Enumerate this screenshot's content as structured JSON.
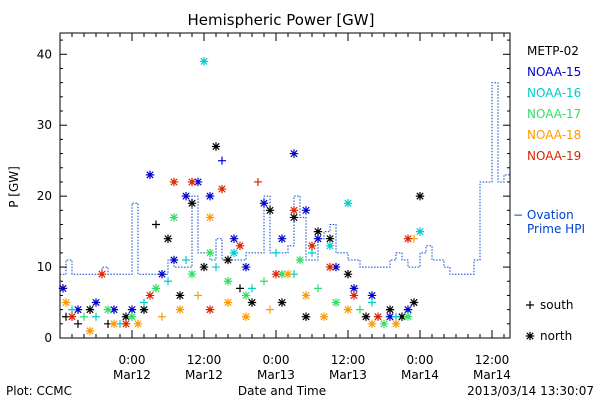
{
  "chart_data": {
    "type": "scatter",
    "title": "Hemispheric Power [GW]",
    "ylabel": "P [GW]",
    "xlabel": "Date and Time",
    "ylim": [
      0,
      43
    ],
    "xlim": [
      "2013-03-11 12:00",
      "2013-03-14 15:00"
    ],
    "yticks": [
      0,
      10,
      20,
      30,
      40
    ],
    "xticks": [
      {
        "t": "2013-03-12 00:00",
        "label1": "0:00",
        "label2": "Mar12"
      },
      {
        "t": "2013-03-12 12:00",
        "label1": "12:00",
        "label2": "Mar12"
      },
      {
        "t": "2013-03-13 00:00",
        "label1": "0:00",
        "label2": "Mar13"
      },
      {
        "t": "2013-03-13 12:00",
        "label1": "12:00",
        "label2": "Mar13"
      },
      {
        "t": "2013-03-14 00:00",
        "label1": "0:00",
        "label2": "Mar14"
      },
      {
        "t": "2013-03-14 12:00",
        "label1": "12:00",
        "label2": "Mar14"
      }
    ],
    "legend_position": "right",
    "series": [
      {
        "name": "METP-02",
        "color": "#000000",
        "points": [
          [
            "2013-03-11 13:00",
            3,
            "south"
          ],
          [
            "2013-03-11 15:00",
            2,
            "south"
          ],
          [
            "2013-03-11 17:00",
            4,
            "north"
          ],
          [
            "2013-03-11 20:00",
            2,
            "south"
          ],
          [
            "2013-03-11 23:00",
            3,
            "north"
          ],
          [
            "2013-03-12 02:00",
            4,
            "north"
          ],
          [
            "2013-03-12 04:00",
            16,
            "south"
          ],
          [
            "2013-03-12 06:00",
            14,
            "north"
          ],
          [
            "2013-03-12 08:00",
            6,
            "north"
          ],
          [
            "2013-03-12 10:00",
            19,
            "north"
          ],
          [
            "2013-03-12 12:00",
            10,
            "north"
          ],
          [
            "2013-03-12 14:00",
            27,
            "north"
          ],
          [
            "2013-03-12 16:00",
            11,
            "north"
          ],
          [
            "2013-03-12 18:00",
            7,
            "south"
          ],
          [
            "2013-03-12 20:00",
            5,
            "north"
          ],
          [
            "2013-03-12 23:00",
            18,
            "north"
          ],
          [
            "2013-03-13 01:00",
            5,
            "north"
          ],
          [
            "2013-03-13 03:00",
            17,
            "north"
          ],
          [
            "2013-03-13 05:00",
            3,
            "north"
          ],
          [
            "2013-03-13 07:00",
            15,
            "north"
          ],
          [
            "2013-03-13 09:00",
            14,
            "north"
          ],
          [
            "2013-03-13 12:00",
            9,
            "north"
          ],
          [
            "2013-03-13 15:00",
            3,
            "north"
          ],
          [
            "2013-03-13 19:00",
            4,
            "north"
          ],
          [
            "2013-03-13 21:00",
            3,
            "north"
          ],
          [
            "2013-03-13 23:00",
            5,
            "north"
          ],
          [
            "2013-03-14 00:00",
            20,
            "north"
          ]
        ]
      },
      {
        "name": "NOAA-15",
        "color": "#0000cc",
        "points": [
          [
            "2013-03-11 12:30",
            7,
            "north"
          ],
          [
            "2013-03-11 15:00",
            4,
            "north"
          ],
          [
            "2013-03-11 18:00",
            5,
            "north"
          ],
          [
            "2013-03-11 21:00",
            4,
            "north"
          ],
          [
            "2013-03-12 00:00",
            4,
            "north"
          ],
          [
            "2013-03-12 03:00",
            23,
            "north"
          ],
          [
            "2013-03-12 05:00",
            9,
            "north"
          ],
          [
            "2013-03-12 07:00",
            11,
            "north"
          ],
          [
            "2013-03-12 09:00",
            20,
            "north"
          ],
          [
            "2013-03-12 11:00",
            22,
            "north"
          ],
          [
            "2013-03-12 13:00",
            20,
            "north"
          ],
          [
            "2013-03-12 15:00",
            25,
            "south"
          ],
          [
            "2013-03-12 17:00",
            14,
            "north"
          ],
          [
            "2013-03-12 19:00",
            10,
            "north"
          ],
          [
            "2013-03-12 22:00",
            19,
            "north"
          ],
          [
            "2013-03-13 01:00",
            14,
            "north"
          ],
          [
            "2013-03-13 03:00",
            26,
            "north"
          ],
          [
            "2013-03-13 05:00",
            18,
            "north"
          ],
          [
            "2013-03-13 07:00",
            14,
            "north"
          ],
          [
            "2013-03-13 10:00",
            10,
            "north"
          ],
          [
            "2013-03-13 13:00",
            7,
            "north"
          ],
          [
            "2013-03-13 16:00",
            6,
            "north"
          ],
          [
            "2013-03-13 19:00",
            3,
            "north"
          ],
          [
            "2013-03-13 22:00",
            4,
            "north"
          ]
        ]
      },
      {
        "name": "NOAA-16",
        "color": "#00cccc",
        "points": [
          [
            "2013-03-11 14:00",
            4,
            "south"
          ],
          [
            "2013-03-11 18:00",
            3,
            "south"
          ],
          [
            "2013-03-11 22:00",
            2,
            "south"
          ],
          [
            "2013-03-12 02:00",
            5,
            "south"
          ],
          [
            "2013-03-12 06:00",
            8,
            "south"
          ],
          [
            "2013-03-12 09:00",
            11,
            "south"
          ],
          [
            "2013-03-12 12:00",
            39,
            "north"
          ],
          [
            "2013-03-12 14:00",
            10,
            "south"
          ],
          [
            "2013-03-12 17:00",
            12,
            "north"
          ],
          [
            "2013-03-12 20:00",
            7,
            "south"
          ],
          [
            "2013-03-13 00:00",
            12,
            "south"
          ],
          [
            "2013-03-13 03:00",
            9,
            "south"
          ],
          [
            "2013-03-13 06:00",
            12,
            "south"
          ],
          [
            "2013-03-13 09:00",
            13,
            "north"
          ],
          [
            "2013-03-13 12:00",
            19,
            "north"
          ],
          [
            "2013-03-13 16:00",
            5,
            "south"
          ],
          [
            "2013-03-13 20:00",
            3,
            "south"
          ],
          [
            "2013-03-14 00:00",
            15,
            "north"
          ]
        ]
      },
      {
        "name": "NOAA-17",
        "color": "#33dd66",
        "points": [
          [
            "2013-03-11 16:00",
            3,
            "south"
          ],
          [
            "2013-03-11 20:00",
            4,
            "north"
          ],
          [
            "2013-03-12 00:00",
            3,
            "north"
          ],
          [
            "2013-03-12 04:00",
            7,
            "north"
          ],
          [
            "2013-03-12 07:00",
            17,
            "north"
          ],
          [
            "2013-03-12 10:00",
            9,
            "north"
          ],
          [
            "2013-03-12 13:00",
            12,
            "north"
          ],
          [
            "2013-03-12 16:00",
            8,
            "north"
          ],
          [
            "2013-03-12 19:00",
            6,
            "north"
          ],
          [
            "2013-03-12 22:00",
            8,
            "south"
          ],
          [
            "2013-03-13 01:00",
            9,
            "north"
          ],
          [
            "2013-03-13 04:00",
            11,
            "north"
          ],
          [
            "2013-03-13 07:00",
            7,
            "south"
          ],
          [
            "2013-03-13 10:00",
            5,
            "north"
          ],
          [
            "2013-03-13 14:00",
            4,
            "south"
          ],
          [
            "2013-03-13 18:00",
            2,
            "north"
          ],
          [
            "2013-03-13 22:00",
            3,
            "north"
          ]
        ]
      },
      {
        "name": "NOAA-18",
        "color": "#ff9900",
        "points": [
          [
            "2013-03-11 13:00",
            5,
            "north"
          ],
          [
            "2013-03-11 17:00",
            1,
            "north"
          ],
          [
            "2013-03-11 21:00",
            2,
            "north"
          ],
          [
            "2013-03-12 01:00",
            2,
            "north"
          ],
          [
            "2013-03-12 05:00",
            3,
            "south"
          ],
          [
            "2013-03-12 08:00",
            4,
            "north"
          ],
          [
            "2013-03-12 11:00",
            6,
            "south"
          ],
          [
            "2013-03-12 13:00",
            17,
            "north"
          ],
          [
            "2013-03-12 16:00",
            5,
            "north"
          ],
          [
            "2013-03-12 19:00",
            3,
            "north"
          ],
          [
            "2013-03-12 23:00",
            4,
            "south"
          ],
          [
            "2013-03-13 02:00",
            9,
            "north"
          ],
          [
            "2013-03-13 05:00",
            6,
            "north"
          ],
          [
            "2013-03-13 08:00",
            3,
            "north"
          ],
          [
            "2013-03-13 12:00",
            4,
            "north"
          ],
          [
            "2013-03-13 16:00",
            2,
            "north"
          ],
          [
            "2013-03-13 20:00",
            2,
            "north"
          ],
          [
            "2013-03-13 23:00",
            14,
            "south"
          ]
        ]
      },
      {
        "name": "NOAA-19",
        "color": "#dd2200",
        "points": [
          [
            "2013-03-11 14:00",
            3,
            "north"
          ],
          [
            "2013-03-11 19:00",
            9,
            "north"
          ],
          [
            "2013-03-11 23:00",
            2,
            "north"
          ],
          [
            "2013-03-12 03:00",
            6,
            "north"
          ],
          [
            "2013-03-12 07:00",
            22,
            "north"
          ],
          [
            "2013-03-12 10:00",
            22,
            "north"
          ],
          [
            "2013-03-12 13:00",
            4,
            "north"
          ],
          [
            "2013-03-12 15:00",
            21,
            "north"
          ],
          [
            "2013-03-12 18:00",
            13,
            "north"
          ],
          [
            "2013-03-12 21:00",
            22,
            "south"
          ],
          [
            "2013-03-13 00:00",
            9,
            "north"
          ],
          [
            "2013-03-13 03:00",
            18,
            "north"
          ],
          [
            "2013-03-13 06:00",
            13,
            "north"
          ],
          [
            "2013-03-13 09:00",
            10,
            "north"
          ],
          [
            "2013-03-13 13:00",
            6,
            "north"
          ],
          [
            "2013-03-13 17:00",
            3,
            "north"
          ],
          [
            "2013-03-13 22:00",
            14,
            "north"
          ]
        ]
      }
    ],
    "ovation": {
      "name_line1": "− Ovation",
      "name_line2": "Prime HPI",
      "color": "#0044cc",
      "points": [
        [
          "2013-03-11 12:00",
          9
        ],
        [
          "2013-03-11 13:00",
          11
        ],
        [
          "2013-03-11 14:00",
          9
        ],
        [
          "2013-03-11 18:00",
          9
        ],
        [
          "2013-03-11 19:00",
          10
        ],
        [
          "2013-03-11 20:00",
          9
        ],
        [
          "2013-03-11 23:00",
          9
        ],
        [
          "2013-03-12 00:00",
          19
        ],
        [
          "2013-03-12 01:00",
          9
        ],
        [
          "2013-03-12 05:00",
          9
        ],
        [
          "2013-03-12 06:00",
          11
        ],
        [
          "2013-03-12 07:00",
          10
        ],
        [
          "2013-03-12 09:00",
          10
        ],
        [
          "2013-03-12 10:00",
          20
        ],
        [
          "2013-03-12 11:00",
          12
        ],
        [
          "2013-03-12 13:00",
          11
        ],
        [
          "2013-03-12 14:00",
          14
        ],
        [
          "2013-03-12 15:00",
          11
        ],
        [
          "2013-03-12 18:00",
          11
        ],
        [
          "2013-03-12 19:00",
          12
        ],
        [
          "2013-03-12 21:00",
          12
        ],
        [
          "2013-03-12 22:00",
          20
        ],
        [
          "2013-03-12 23:00",
          12
        ],
        [
          "2013-03-13 01:00",
          12
        ],
        [
          "2013-03-13 02:00",
          13
        ],
        [
          "2013-03-13 03:00",
          20
        ],
        [
          "2013-03-13 04:00",
          17
        ],
        [
          "2013-03-13 05:00",
          11
        ],
        [
          "2013-03-13 07:00",
          14
        ],
        [
          "2013-03-13 08:00",
          15
        ],
        [
          "2013-03-13 09:00",
          16
        ],
        [
          "2013-03-13 10:00",
          12
        ],
        [
          "2013-03-13 12:00",
          11
        ],
        [
          "2013-03-13 14:00",
          10
        ],
        [
          "2013-03-13 16:00",
          10
        ],
        [
          "2013-03-13 18:00",
          10
        ],
        [
          "2013-03-13 19:00",
          11
        ],
        [
          "2013-03-13 20:00",
          12
        ],
        [
          "2013-03-13 21:00",
          11
        ],
        [
          "2013-03-13 22:00",
          10
        ],
        [
          "2013-03-14 00:00",
          12
        ],
        [
          "2013-03-14 01:00",
          13
        ],
        [
          "2013-03-14 02:00",
          11
        ],
        [
          "2013-03-14 04:00",
          10
        ],
        [
          "2013-03-14 05:00",
          9
        ],
        [
          "2013-03-14 07:00",
          9
        ],
        [
          "2013-03-14 08:00",
          9
        ],
        [
          "2013-03-14 09:00",
          11
        ],
        [
          "2013-03-14 10:00",
          22
        ],
        [
          "2013-03-14 11:00",
          22
        ],
        [
          "2013-03-14 12:00",
          36
        ],
        [
          "2013-03-14 13:00",
          22
        ],
        [
          "2013-03-14 14:00",
          23
        ],
        [
          "2013-03-14 15:00",
          21
        ]
      ]
    },
    "marker_legend": [
      {
        "symbol": "+",
        "label": "south"
      },
      {
        "symbol": "*",
        "label": "north"
      }
    ]
  },
  "footer": {
    "left": "Plot: CCMC",
    "right": "2013/03/14 13:30:07"
  }
}
